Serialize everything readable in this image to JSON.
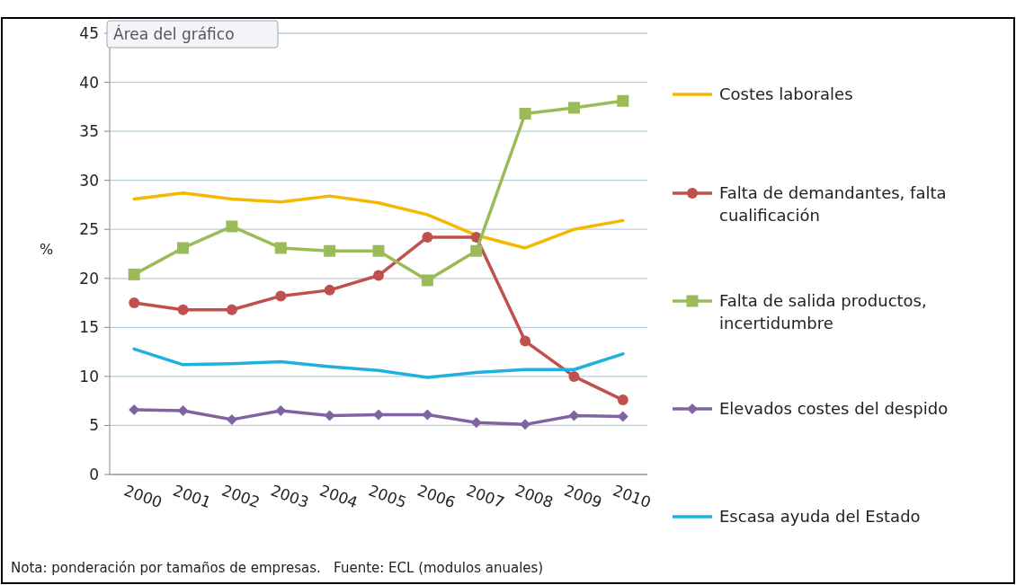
{
  "chart_data": {
    "type": "line",
    "ylabel": "%",
    "categories": [
      "2000",
      "2001",
      "2002",
      "2003",
      "2004",
      "2005",
      "2006",
      "2007",
      "2008",
      "2009",
      "2010"
    ],
    "ylim": [
      0,
      45
    ],
    "yticks": [
      0,
      5,
      10,
      15,
      20,
      25,
      30,
      35,
      40,
      45
    ],
    "grid": "y",
    "legend": "right",
    "line_style": "solid",
    "series": [
      {
        "name": "Costes laborales",
        "color": "#f5b800",
        "marker": "none",
        "values": [
          28.1,
          28.7,
          28.1,
          27.8,
          28.4,
          27.7,
          26.5,
          24.4,
          23.1,
          25.0,
          25.9
        ]
      },
      {
        "name": "Falta de demandantes, falta cualificación",
        "color": "#c0504d",
        "marker": "circle",
        "values": [
          17.5,
          16.8,
          16.8,
          18.2,
          18.8,
          20.3,
          24.2,
          24.2,
          13.6,
          10.0,
          7.6
        ]
      },
      {
        "name": "Falta de salida productos, incertidumbre",
        "color": "#9bbb59",
        "marker": "square",
        "values": [
          20.4,
          23.1,
          25.3,
          23.1,
          22.8,
          22.8,
          19.8,
          22.8,
          36.8,
          37.4,
          38.1
        ]
      },
      {
        "name": "Elevados costes del despido",
        "color": "#8064a2",
        "marker": "diamond",
        "values": [
          6.6,
          6.5,
          5.6,
          6.5,
          6.0,
          6.1,
          6.1,
          5.3,
          5.1,
          6.0,
          5.9
        ]
      },
      {
        "name": "Escasa ayuda del Estado",
        "color": "#1fb0e0",
        "marker": "none",
        "values": [
          12.8,
          11.2,
          11.3,
          11.5,
          11.0,
          10.6,
          9.9,
          10.4,
          10.7,
          10.7,
          12.3
        ]
      }
    ],
    "annotations": [
      "Área del gráfico",
      "Nota: ponderación por tamaños de empresas.   Fuente: ECL (modulos anuales)"
    ]
  }
}
